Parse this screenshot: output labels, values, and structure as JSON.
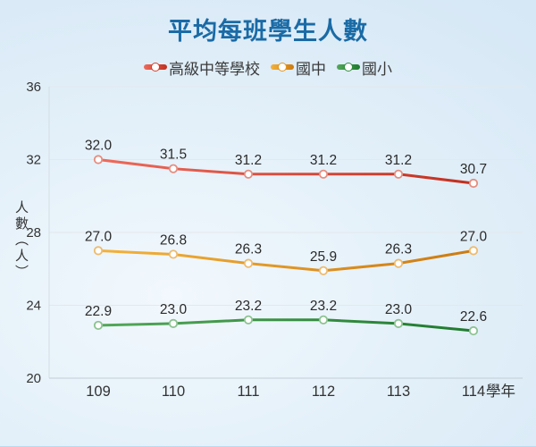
{
  "title": "平均每班學生人數",
  "chart_data": {
    "type": "line",
    "title": "平均每班學生人數",
    "x": [
      109,
      110,
      111,
      112,
      113,
      114
    ],
    "x_axis_suffix": "學年",
    "ylabel": "人數（人）",
    "ylim": [
      20,
      36
    ],
    "yticks": [
      20,
      24,
      28,
      32,
      36
    ],
    "grid": true,
    "legend_position": "top",
    "value_label_decimals": 1,
    "series": [
      {
        "name": "高級中等學校",
        "values": [
          32.0,
          31.5,
          31.2,
          31.2,
          31.2,
          30.7
        ],
        "color": "#d63a2a",
        "color_start": "#ee6a5b",
        "color_end": "#c22f1f",
        "marker_ring": "#e58d7f"
      },
      {
        "name": "國中",
        "values": [
          27.0,
          26.8,
          26.3,
          25.9,
          26.3,
          27.0
        ],
        "color": "#e3951d",
        "color_start": "#f4b23a",
        "color_end": "#cc7a10",
        "marker_ring": "#edbb6e"
      },
      {
        "name": "國小",
        "values": [
          22.9,
          23.0,
          23.2,
          23.2,
          23.0,
          22.6
        ],
        "color": "#2f8c3c",
        "color_start": "#54a858",
        "color_end": "#1e7a2e",
        "marker_ring": "#8cc391"
      }
    ],
    "colors": {
      "title": "#1a6ba6",
      "axis_line": "#c3ced6",
      "gridline": "#e3e8ec",
      "tick_text": "#333333",
      "value_label_text": "#2a2a2a"
    }
  }
}
